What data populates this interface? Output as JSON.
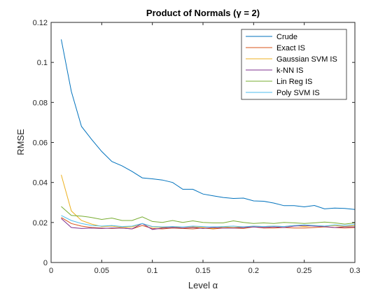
{
  "chart_data": {
    "type": "line",
    "title": "Product of Normals (γ = 2)",
    "xlabel": "Level α",
    "ylabel": "RMSE",
    "xlim": [
      0,
      0.3
    ],
    "ylim": [
      0,
      0.12
    ],
    "grid": false,
    "legend_position": "top-right",
    "xticks": [
      0,
      0.05,
      0.1,
      0.15,
      0.2,
      0.25,
      0.3
    ],
    "xtick_labels": [
      "0",
      "0.05",
      "0.1",
      "0.15",
      "0.2",
      "0.25",
      "0.3"
    ],
    "yticks": [
      0,
      0.02,
      0.04,
      0.06,
      0.08,
      0.1,
      0.12
    ],
    "ytick_labels": [
      "0",
      "0.02",
      "0.04",
      "0.06",
      "0.08",
      "0.1",
      "0.12"
    ],
    "x": [
      0.01,
      0.02,
      0.03,
      0.04,
      0.05,
      0.06,
      0.07,
      0.08,
      0.09,
      0.1,
      0.11,
      0.12,
      0.13,
      0.14,
      0.15,
      0.16,
      0.17,
      0.18,
      0.19,
      0.2,
      0.21,
      0.22,
      0.23,
      0.24,
      0.25,
      0.26,
      0.27,
      0.28,
      0.29,
      0.3
    ],
    "series": [
      {
        "name": "Crude",
        "color": "#0072BD",
        "values": [
          0.1115,
          0.0855,
          0.068,
          0.0615,
          0.0555,
          0.0505,
          0.0483,
          0.0455,
          0.0423,
          0.0418,
          0.0412,
          0.04,
          0.0366,
          0.0366,
          0.0342,
          0.0333,
          0.0325,
          0.032,
          0.0322,
          0.0308,
          0.0306,
          0.0297,
          0.0284,
          0.0284,
          0.0278,
          0.0285,
          0.0268,
          0.0272,
          0.027,
          0.0265
        ]
      },
      {
        "name": "Exact IS",
        "color": "#D95319",
        "values": [
          0.0225,
          0.0195,
          0.0182,
          0.0175,
          0.0172,
          0.017,
          0.0172,
          0.0168,
          0.0185,
          0.017,
          0.0168,
          0.0172,
          0.017,
          0.0168,
          0.0172,
          0.0168,
          0.0172,
          0.0172,
          0.017,
          0.0178,
          0.0172,
          0.0172,
          0.0175,
          0.0172,
          0.0172,
          0.0175,
          0.0178,
          0.0175,
          0.0172,
          0.0175
        ]
      },
      {
        "name": "Gaussian SVM IS",
        "color": "#EDB120",
        "values": [
          0.0438,
          0.0258,
          0.021,
          0.0192,
          0.018,
          0.0182,
          0.0175,
          0.0178,
          0.0195,
          0.0178,
          0.0175,
          0.018,
          0.0172,
          0.0178,
          0.0175,
          0.017,
          0.0178,
          0.0175,
          0.0178,
          0.0182,
          0.018,
          0.0182,
          0.018,
          0.0185,
          0.018,
          0.0185,
          0.0182,
          0.0185,
          0.018,
          0.0185
        ]
      },
      {
        "name": "k-NN IS",
        "color": "#7E2F8E",
        "values": [
          0.022,
          0.0175,
          0.017,
          0.0172,
          0.017,
          0.0172,
          0.0172,
          0.0168,
          0.0195,
          0.0165,
          0.0172,
          0.0175,
          0.0172,
          0.0175,
          0.017,
          0.0175,
          0.0172,
          0.0172,
          0.0175,
          0.0178,
          0.0175,
          0.0178,
          0.0175,
          0.0182,
          0.0185,
          0.0182,
          0.018,
          0.0175,
          0.0178,
          0.0178
        ]
      },
      {
        "name": "Lin Reg IS",
        "color": "#77AC30",
        "values": [
          0.028,
          0.0235,
          0.0232,
          0.0225,
          0.0215,
          0.0222,
          0.021,
          0.021,
          0.0228,
          0.0205,
          0.02,
          0.021,
          0.02,
          0.0208,
          0.02,
          0.0198,
          0.0198,
          0.0208,
          0.02,
          0.0195,
          0.0198,
          0.0195,
          0.02,
          0.0198,
          0.0195,
          0.0198,
          0.0202,
          0.0198,
          0.0192,
          0.0198
        ]
      },
      {
        "name": "Poly SVM IS",
        "color": "#4DBEEE",
        "values": [
          0.0235,
          0.021,
          0.0195,
          0.0185,
          0.0182,
          0.0185,
          0.018,
          0.0182,
          0.0195,
          0.018,
          0.0178,
          0.018,
          0.0178,
          0.0182,
          0.018,
          0.0178,
          0.018,
          0.0182,
          0.0178,
          0.0182,
          0.018,
          0.0182,
          0.018,
          0.0185,
          0.0188,
          0.0185,
          0.0182,
          0.0188,
          0.0185,
          0.019
        ]
      }
    ]
  }
}
